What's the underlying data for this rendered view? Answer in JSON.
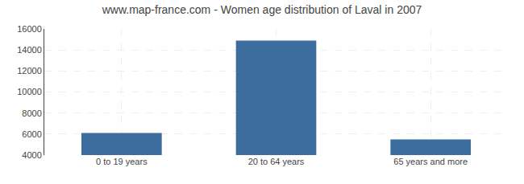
{
  "chart_data": {
    "type": "bar",
    "title": "www.map-france.com - Women age distribution of Laval in 2007",
    "categories": [
      "0 to 19 years",
      "20 to 64 years",
      "65 years and more"
    ],
    "values": [
      6100,
      14900,
      5500
    ],
    "color": "#3d6d9e",
    "ylim": [
      4000,
      16000
    ],
    "yticks": [
      4000,
      6000,
      8000,
      10000,
      12000,
      14000,
      16000
    ],
    "grid": true
  }
}
